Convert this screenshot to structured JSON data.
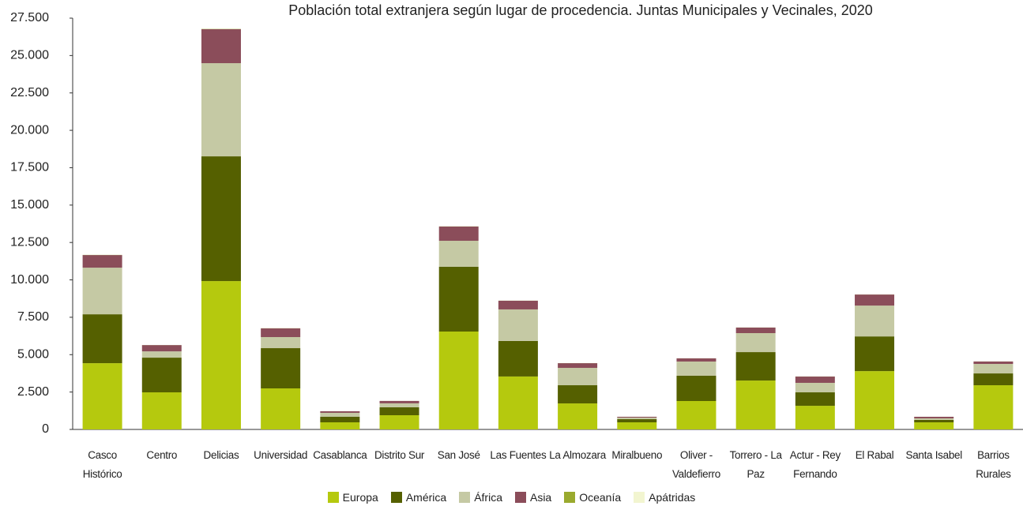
{
  "chart_data": {
    "type": "stacked-bar",
    "title": "Población total extranjera según lugar de procedencia. Juntas Municipales y Vecinales, 2020",
    "categories": [
      "Casco Histórico",
      "Centro",
      "Delicias",
      "Universidad",
      "Casablanca",
      "Distrito Sur",
      "San José",
      "Las Fuentes",
      "La Almozara",
      "Miralbueno",
      "Oliver - Valdefierro",
      "Torrero - La Paz",
      "Actur - Rey Fernando",
      "El Rabal",
      "Santa Isabel",
      "Barrios Rurales"
    ],
    "series": [
      {
        "name": "Europa",
        "color": "#b5c90e",
        "values": [
          4430,
          2480,
          9920,
          2745,
          475,
          950,
          6545,
          3540,
          1740,
          475,
          1900,
          3270,
          1580,
          3900,
          475,
          2955
        ]
      },
      {
        "name": "América",
        "color": "#556000",
        "values": [
          3270,
          2320,
          8340,
          2690,
          370,
          530,
          4330,
          2375,
          1215,
          210,
          1690,
          1900,
          900,
          2320,
          160,
          790
        ]
      },
      {
        "name": "África",
        "color": "#c5c9a4",
        "values": [
          3115,
          420,
          6230,
          740,
          265,
          265,
          1740,
          2110,
          1160,
          105,
          950,
          1270,
          635,
          2060,
          105,
          635
        ]
      },
      {
        "name": "Asia",
        "color": "#8b4d5a",
        "values": [
          845,
          420,
          2270,
          580,
          105,
          160,
          950,
          580,
          315,
          55,
          210,
          370,
          420,
          740,
          105,
          160
        ]
      },
      {
        "name": "Oceanía",
        "color": "#9aaa2e",
        "values": [
          10,
          5,
          20,
          10,
          2,
          2,
          10,
          5,
          5,
          2,
          5,
          5,
          5,
          5,
          2,
          5
        ]
      },
      {
        "name": "Apátridas",
        "color": "#f2f5d0",
        "values": [
          5,
          2,
          10,
          5,
          1,
          1,
          5,
          2,
          2,
          1,
          2,
          2,
          2,
          2,
          1,
          2
        ]
      }
    ],
    "ylim": [
      0,
      27500
    ],
    "yticks": [
      0,
      {
        "value": 2500,
        "label": "2.500"
      },
      {
        "value": 5000,
        "label": "5.000"
      },
      {
        "value": 7500,
        "label": "7.500"
      },
      {
        "value": 10000,
        "label": "10.000"
      },
      {
        "value": 12500,
        "label": "12.500"
      },
      {
        "value": 15000,
        "label": "15.000"
      },
      {
        "value": 17500,
        "label": "17.500"
      },
      {
        "value": 20000,
        "label": "20.000"
      },
      {
        "value": 22500,
        "label": "22.500"
      },
      {
        "value": 25000,
        "label": "25.000"
      },
      {
        "value": 27500,
        "label": "27.500"
      }
    ],
    "grid": false,
    "legend": "bottom"
  }
}
